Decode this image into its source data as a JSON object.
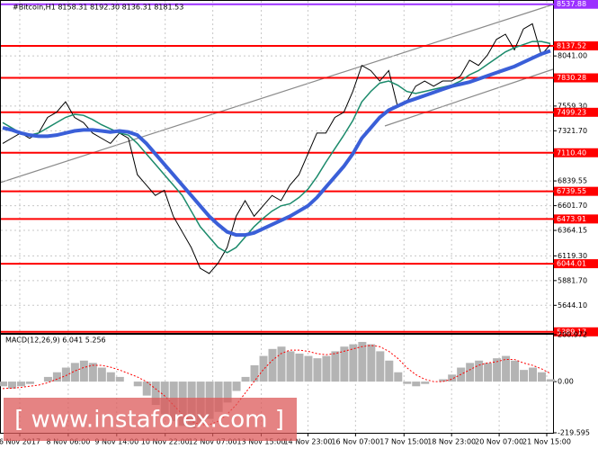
{
  "chart_data": [
    {
      "type": "line",
      "title": "#Bitcoin,H1 8158.31 8192.30 8136.31 8181.53",
      "xlim": [
        0,
        61
      ],
      "xticks": [
        {
          "value": 1.9,
          "label": "6 Nov 2017"
        },
        {
          "value": 7.3,
          "label": "8 Nov 06:00"
        },
        {
          "value": 12.7,
          "label": "9 Nov 14:00"
        },
        {
          "value": 18.1,
          "label": "10 Nov 22:00"
        },
        {
          "value": 23.4,
          "label": "12 Nov 07:00"
        },
        {
          "value": 28.8,
          "label": "13 Nov 15:00"
        },
        {
          "value": 34,
          "label": "14 Nov 23:00"
        },
        {
          "value": 39.3,
          "label": "16 Nov 07:00"
        },
        {
          "value": 44.7,
          "label": "17 Nov 15:00"
        },
        {
          "value": 50,
          "label": "18 Nov 23:00"
        },
        {
          "value": 55.3,
          "label": "20 Nov 07:00"
        },
        {
          "value": 60.6,
          "label": "21 Nov 15:00"
        }
      ],
      "ylim": [
        5370,
        8570
      ],
      "yticks": [
        {
          "value": 8041,
          "label": "8041.00"
        },
        {
          "value": 7559.3,
          "label": "7559.30"
        },
        {
          "value": 7321.7,
          "label": "7321.70"
        },
        {
          "value": 6839.55,
          "label": "6839.55"
        },
        {
          "value": 6601.7,
          "label": "6601.70"
        },
        {
          "value": 6364.15,
          "label": "6364.15"
        },
        {
          "value": 6119.3,
          "label": "6119.30"
        },
        {
          "value": 5881.7,
          "label": "5881.70"
        },
        {
          "value": 5644.1,
          "label": "5644.10"
        }
      ],
      "grid": true,
      "levels": [
        8537.88,
        8137.52,
        7830.28,
        7499.23,
        {
          "value": 7110.4,
          "label": "7110.40"
        },
        6739.55,
        6473.91,
        6044.01,
        5389.17
      ],
      "level_colors": [
        "#9b30ff",
        "#ff0000",
        "#ff0000",
        "#ff0000",
        "#ff0000",
        "#ff0000",
        "#ff0000",
        "#ff0000",
        "#ff0000"
      ],
      "series": [
        {
          "color": "#000000",
          "values": [
            7200,
            7250,
            7300,
            7250,
            7300,
            7450,
            7500,
            7600,
            7450,
            7400,
            7300,
            7250,
            7200,
            7300,
            7250,
            6900,
            6800,
            6700,
            6750,
            6500,
            6350,
            6200,
            6000,
            5950,
            6050,
            6200,
            6500,
            6650,
            6500,
            6600,
            6700,
            6650,
            6800,
            6900,
            7100,
            7300,
            7300,
            7450,
            7500,
            7700,
            7950,
            7900,
            7800,
            7900,
            7550,
            7600,
            7750,
            7800,
            7750,
            7800,
            7800,
            7850,
            8000,
            7950,
            8050,
            8200,
            8250,
            8100,
            8300,
            8350,
            8050,
            8150
          ]
        },
        {
          "color": "#1b8a6b",
          "values": [
            7400,
            7350,
            7300,
            7280,
            7300,
            7350,
            7400,
            7450,
            7480,
            7470,
            7430,
            7380,
            7340,
            7300,
            7280,
            7200,
            7100,
            7000,
            6900,
            6800,
            6700,
            6550,
            6400,
            6300,
            6200,
            6150,
            6200,
            6300,
            6400,
            6480,
            6550,
            6600,
            6620,
            6680,
            6760,
            6880,
            7020,
            7150,
            7280,
            7420,
            7600,
            7700,
            7780,
            7800,
            7760,
            7700,
            7680,
            7700,
            7720,
            7740,
            7760,
            7800,
            7860,
            7900,
            7960,
            8020,
            8080,
            8120,
            8150,
            8180,
            8180,
            8160
          ]
        },
        {
          "color": "#3a5fd8",
          "values": [
            7350,
            7330,
            7300,
            7280,
            7270,
            7270,
            7280,
            7300,
            7320,
            7330,
            7330,
            7320,
            7310,
            7320,
            7310,
            7280,
            7200,
            7100,
            7000,
            6900,
            6800,
            6700,
            6600,
            6500,
            6420,
            6350,
            6320,
            6320,
            6340,
            6380,
            6420,
            6460,
            6500,
            6550,
            6600,
            6680,
            6780,
            6880,
            6980,
            7100,
            7250,
            7350,
            7450,
            7520,
            7560,
            7600,
            7630,
            7660,
            7690,
            7720,
            7750,
            7770,
            7790,
            7820,
            7850,
            7880,
            7910,
            7940,
            7980,
            8020,
            8060,
            8090
          ]
        }
      ]
    },
    {
      "type": "macd",
      "title": "MACD(12,26,9) 6.041 5.256",
      "xlim": [
        0,
        61
      ],
      "ylim": [
        -219.595,
        200.972
      ],
      "yticks": [
        200.972,
        {
          "value": 0,
          "label": "0.00"
        },
        -219.595
      ],
      "series": [
        {
          "color": "#b4b4b4",
          "values": [
            -20,
            -30,
            -20,
            -10,
            0,
            20,
            40,
            60,
            80,
            90,
            80,
            60,
            40,
            20,
            0,
            -20,
            -60,
            -100,
            -140,
            -170,
            -190,
            -200,
            -180,
            -160,
            -130,
            -90,
            -40,
            20,
            70,
            110,
            140,
            150,
            130,
            120,
            110,
            100,
            110,
            130,
            150,
            160,
            170,
            160,
            130,
            90,
            40,
            -10,
            -20,
            -10,
            0,
            10,
            30,
            60,
            80,
            90,
            80,
            100,
            110,
            90,
            50,
            60,
            40,
            10
          ]
        },
        {
          "color": "#ff0000",
          "values": [
            -30,
            -28,
            -25,
            -20,
            -15,
            -5,
            10,
            25,
            45,
            60,
            70,
            70,
            62,
            50,
            35,
            20,
            0,
            -30,
            -60,
            -100,
            -140,
            -170,
            -185,
            -185,
            -170,
            -140,
            -100,
            -50,
            0,
            50,
            90,
            120,
            135,
            135,
            130,
            120,
            115,
            120,
            130,
            140,
            150,
            155,
            150,
            130,
            100,
            60,
            30,
            10,
            0,
            0,
            10,
            30,
            50,
            70,
            80,
            85,
            95,
            95,
            80,
            70,
            55,
            35
          ]
        }
      ]
    }
  ],
  "watermark": "[ www.instaforex.com ]"
}
